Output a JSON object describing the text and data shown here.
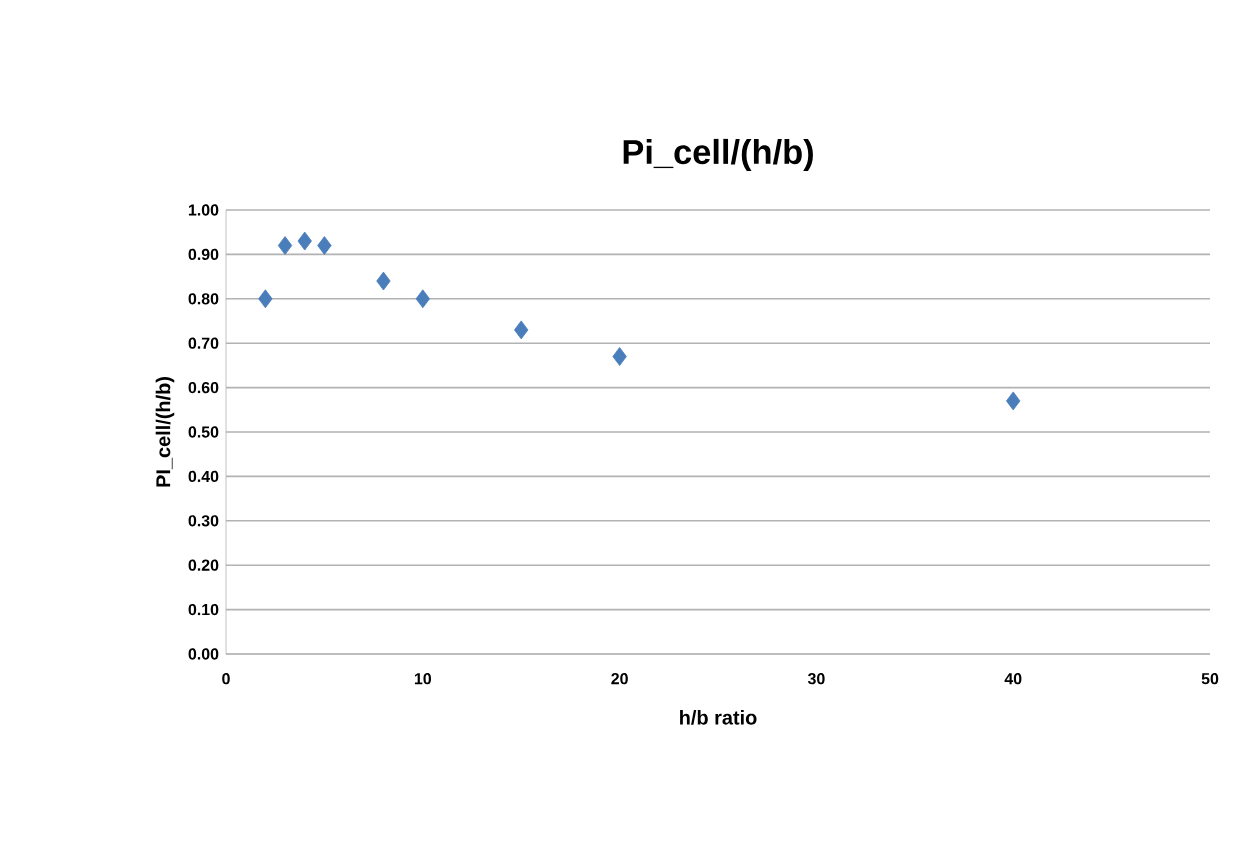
{
  "chart_data": {
    "type": "scatter",
    "title": "Pi_cell/(h/b)",
    "xlabel": "h/b ratio",
    "ylabel": "PI_cell/(h/b)",
    "x": [
      2,
      3,
      4,
      5,
      8,
      10,
      15,
      20,
      40
    ],
    "values": [
      0.8,
      0.92,
      0.93,
      0.92,
      0.84,
      0.8,
      0.73,
      0.67,
      0.57
    ],
    "color": "#4a7ebb",
    "marker": "diamond",
    "grid": "y",
    "xlim": [
      0,
      50
    ],
    "xticks": [
      0,
      10,
      20,
      30,
      40,
      50
    ],
    "ylim": [
      0,
      1
    ],
    "yticks": [
      {
        "value": 0,
        "label": "0.00"
      },
      {
        "value": 0.1,
        "label": "0.10"
      },
      {
        "value": 0.2,
        "label": "0.20"
      },
      {
        "value": 0.3,
        "label": "0.30"
      },
      {
        "value": 0.4,
        "label": "0.40"
      },
      {
        "value": 0.5,
        "label": "0.50"
      },
      {
        "value": 0.6,
        "label": "0.60"
      },
      {
        "value": 0.7,
        "label": "0.70"
      },
      {
        "value": 0.8,
        "label": "0.80"
      },
      {
        "value": 0.9,
        "label": "0.90"
      },
      {
        "value": 1,
        "label": "1.00"
      }
    ]
  }
}
